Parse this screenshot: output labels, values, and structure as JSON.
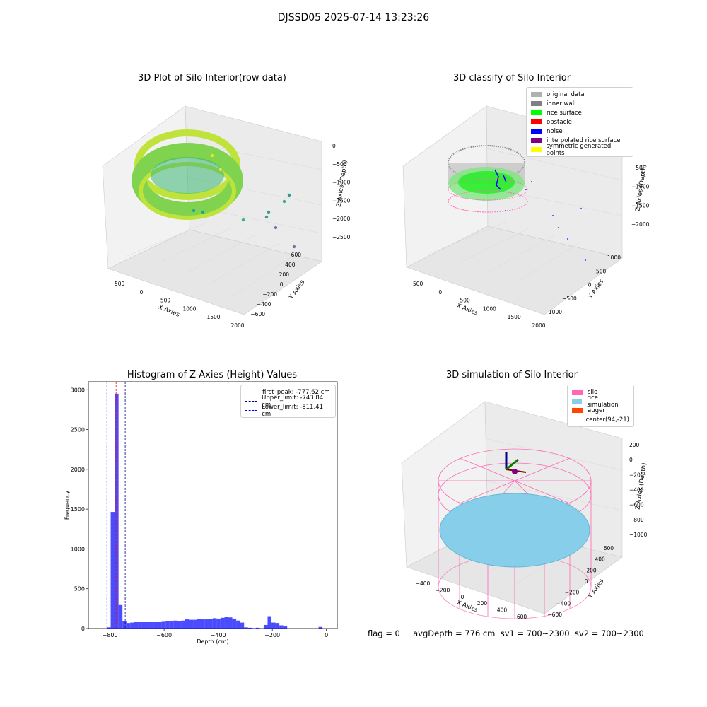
{
  "figure": {
    "suptitle": "DJSSD05 2025-07-14 13:23:26",
    "footer": "flag = 0     avgDepth = 776 cm  sv1 = 700~2300  sv2 = 700~2300"
  },
  "panels": {
    "raw": {
      "title": "3D Plot of Silo Interior(row data)",
      "xlabel": "X Axies",
      "ylabel": "Y Axies",
      "zlabel": "Z Axies (Depth)",
      "xticks": [
        "-500",
        "0",
        "500",
        "1000",
        "1500",
        "2000"
      ],
      "yticks": [
        "600",
        "400",
        "200",
        "0",
        "-200",
        "-400",
        "-600"
      ],
      "zticks": [
        "0",
        "-500",
        "-1000",
        "-1500",
        "-2000",
        "-2500"
      ]
    },
    "classify": {
      "title": "3D classify of Silo Interior",
      "xlabel": "X Axies",
      "ylabel": "Y Axies",
      "zlabel": "Z Axies (Depth)",
      "xticks": [
        "-500",
        "0",
        "500",
        "1000",
        "1500",
        "2000"
      ],
      "yticks": [
        "1000",
        "500",
        "0",
        "-500",
        "-1000"
      ],
      "zticks": [
        "-500",
        "-1000",
        "-1500",
        "-2000"
      ],
      "legend": [
        {
          "label": "original data",
          "color": "#b0b0b0"
        },
        {
          "label": "inner wall",
          "color": "#808080"
        },
        {
          "label": "rice surface",
          "color": "#00ff00"
        },
        {
          "label": "obstacle",
          "color": "#ff0000"
        },
        {
          "label": "noise",
          "color": "#0000ff"
        },
        {
          "label": "interpolated rice surface",
          "color": "#800080"
        },
        {
          "label": "symmetric generated points",
          "color": "#ffff00"
        }
      ]
    },
    "simulation": {
      "title": "3D simulation of Silo Interior",
      "xlabel": "X Axies",
      "ylabel": "Y Axies",
      "zlabel": "Z Axies (Depth)",
      "xticks": [
        "-400",
        "-200",
        "0",
        "200",
        "400",
        "600"
      ],
      "yticks": [
        "600",
        "400",
        "200",
        "0",
        "-200",
        "-400",
        "-600"
      ],
      "zticks": [
        "200",
        "0",
        "-200",
        "-400",
        "-600",
        "-800",
        "-1000"
      ],
      "legend": [
        {
          "label": "silo",
          "color": "#ff69b4"
        },
        {
          "label": "rice simulation",
          "color": "#87ceeb"
        },
        {
          "label": "auger",
          "color": "#ff4500"
        },
        {
          "label": "center(94,-21)",
          "color": "#ffffff"
        }
      ]
    }
  },
  "chart_data": [
    {
      "type": "bar",
      "title": "Histogram of Z-Axies (Height) Values",
      "xlabel": "Depth (cm)",
      "ylabel": "Frequency",
      "xlim": [
        -880,
        40
      ],
      "ylim": [
        0,
        3100
      ],
      "bin_width": 14.5,
      "xticks": [
        -800,
        -600,
        -400,
        -200,
        0
      ],
      "yticks": [
        0,
        500,
        1000,
        1500,
        2000,
        2500,
        3000
      ],
      "bin_starts": [
        -812,
        -797.5,
        -783,
        -768.5,
        -754,
        -739.5,
        -725,
        -710.5,
        -696,
        -681.5,
        -667,
        -652.5,
        -638,
        -623.5,
        -609,
        -594.5,
        -580,
        -565.5,
        -551,
        -536.5,
        -522,
        -507.5,
        -493,
        -478.5,
        -464,
        -449.5,
        -435,
        -420.5,
        -406,
        -391.5,
        -377,
        -362.5,
        -348,
        -333.5,
        -319,
        -304.5,
        -290,
        -275.5,
        -261,
        -246.5,
        -232,
        -217.5,
        -203,
        -188.5,
        -174,
        -159.5,
        -145,
        -130.5,
        -116,
        -101.5,
        -87,
        -72.5,
        -58,
        -43.5,
        -29,
        -14.5
      ],
      "values": [
        15,
        1465,
        2950,
        295,
        90,
        70,
        75,
        80,
        80,
        80,
        80,
        80,
        80,
        80,
        85,
        90,
        95,
        100,
        95,
        100,
        115,
        110,
        110,
        120,
        115,
        115,
        120,
        130,
        125,
        135,
        150,
        140,
        125,
        100,
        75,
        15,
        10,
        5,
        10,
        0,
        45,
        155,
        75,
        70,
        40,
        30,
        0,
        0,
        0,
        0,
        0,
        0,
        0,
        0,
        20,
        0
      ],
      "lines": [
        {
          "label": "first_peak: -777.62 cm",
          "x": -777.62,
          "color": "#ff0000"
        },
        {
          "label": "Upper_limit: -743.84 cm",
          "x": -743.84,
          "color": "#00008b"
        },
        {
          "label": "Lower_limit: -811.41 cm",
          "x": -811.41,
          "color": "#0000ff"
        }
      ],
      "bar_color": "#0000ff"
    }
  ]
}
